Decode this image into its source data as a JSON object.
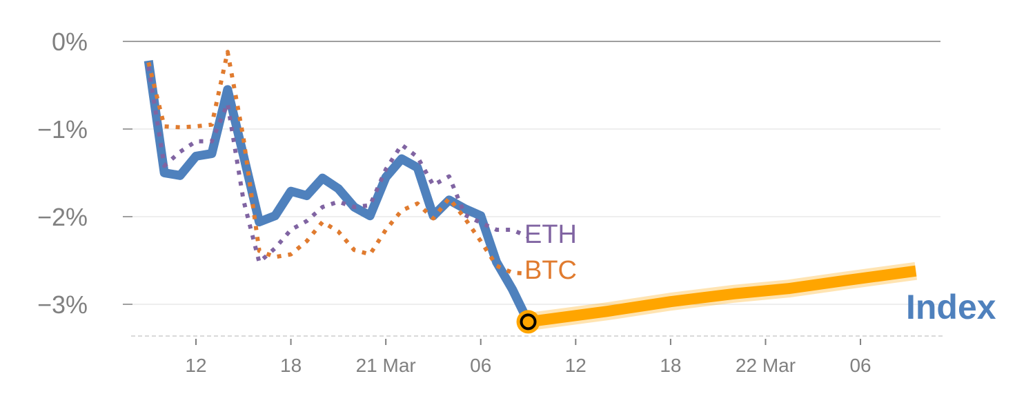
{
  "chart_data": {
    "type": "line",
    "title": "",
    "xlabel": "",
    "ylabel": "",
    "x_unit": "hours since 20 Mar 00:00",
    "ylim": [
      -3.36,
      0
    ],
    "xlim": [
      7.6,
      63.8
    ],
    "y_ticks": [
      {
        "value": 0,
        "label": "0%"
      },
      {
        "value": -1,
        "label": "−1%"
      },
      {
        "value": -2,
        "label": "−2%"
      },
      {
        "value": -3,
        "label": "−3%"
      }
    ],
    "x_ticks": [
      {
        "value": 12,
        "label": "12"
      },
      {
        "value": 18,
        "label": "18"
      },
      {
        "value": 24,
        "label": "21 Mar"
      },
      {
        "value": 30,
        "label": "06"
      },
      {
        "value": 36,
        "label": "12"
      },
      {
        "value": 42,
        "label": "18"
      },
      {
        "value": 48,
        "label": "22 Mar"
      },
      {
        "value": 54,
        "label": "06"
      }
    ],
    "x": [
      9,
      10,
      11,
      12,
      13,
      14,
      15,
      16,
      17,
      18,
      19,
      20,
      21,
      22,
      23,
      24,
      25,
      26,
      27,
      28,
      29,
      30,
      31,
      32,
      33
    ],
    "series": [
      {
        "name": "ETH",
        "label": "ETH",
        "color": "#8064a2",
        "style": "dotted",
        "values": [
          -0.29,
          -1.42,
          -1.26,
          -1.14,
          -1.14,
          -0.71,
          -1.81,
          -2.52,
          -2.36,
          -2.15,
          -2.05,
          -1.89,
          -1.83,
          -1.89,
          -1.87,
          -1.46,
          -1.18,
          -1.32,
          -1.64,
          -1.54,
          -1.98,
          -2.07,
          -2.15,
          -2.15,
          -2.23
        ]
      },
      {
        "name": "BTC",
        "label": "BTC",
        "color": "#e07b2f",
        "style": "dotted",
        "values": [
          -0.24,
          -0.97,
          -0.98,
          -0.97,
          -0.95,
          -0.12,
          -1.1,
          -2.39,
          -2.46,
          -2.43,
          -2.28,
          -2.06,
          -2.17,
          -2.38,
          -2.43,
          -2.15,
          -1.93,
          -1.85,
          -2.02,
          -1.79,
          -2.02,
          -2.28,
          -2.56,
          -2.64,
          -2.65
        ]
      },
      {
        "name": "Index",
        "label": "Index",
        "color": "#4f81bd",
        "style": "solid",
        "values": [
          -0.22,
          -1.5,
          -1.53,
          -1.31,
          -1.28,
          -0.55,
          -1.3,
          -2.06,
          -1.99,
          -1.71,
          -1.76,
          -1.56,
          -1.68,
          -1.89,
          -1.99,
          -1.55,
          -1.34,
          -1.44,
          -1.99,
          -1.81,
          -1.91,
          -1.99,
          -2.52,
          -2.83,
          -3.2
        ]
      }
    ],
    "forecast": {
      "name": "Index forecast",
      "color": "#ffa500",
      "points": [
        [
          33,
          -3.2
        ],
        [
          38,
          -3.08
        ],
        [
          42,
          -2.97
        ],
        [
          46,
          -2.88
        ],
        [
          49.5,
          -2.82
        ],
        [
          53,
          -2.73
        ],
        [
          57.5,
          -2.62
        ]
      ]
    },
    "marker": {
      "x": 33,
      "y": -3.2
    },
    "grid": true,
    "legend": "inline labels at series ends"
  }
}
